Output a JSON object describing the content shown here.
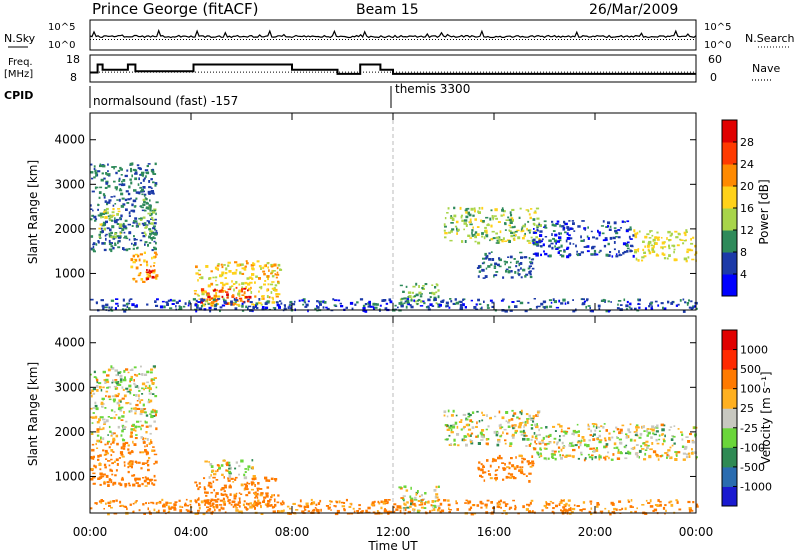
{
  "header": {
    "station": "Prince George (fitACF)",
    "beam": "Beam 15",
    "date": "26/Mar/2009"
  },
  "status_panels": {
    "nsky_label": "N.Sky",
    "nsearch_label": "N.Search",
    "nsky_ticks": [
      "10^5",
      "10^0"
    ],
    "nsearch_ticks": [
      "10^5",
      "10^0"
    ],
    "freq_label_line1": "Freq.",
    "freq_label_line2": "[MHz]",
    "freq_ticks": [
      "18",
      "8"
    ],
    "nave_label": "Nave",
    "nave_ticks": [
      "60",
      "0"
    ],
    "cpid_label": "CPID",
    "cpid_segments": [
      "normalsound (fast) -157",
      "themis 3300"
    ]
  },
  "axes": {
    "ylabel": "Slant Range [km]",
    "xlabel": "Time UT",
    "x_ticks": [
      "00:00",
      "04:00",
      "08:00",
      "12:00",
      "16:00",
      "20:00",
      "00:00"
    ],
    "y_ticks": [
      "1000",
      "2000",
      "3000",
      "4000"
    ]
  },
  "colorbars": {
    "power": {
      "label": "Power [dB]",
      "ticks": [
        "4",
        "8",
        "12",
        "16",
        "20",
        "24",
        "28"
      ],
      "colors": [
        "#0000ff",
        "#1c3aa8",
        "#2e8a5a",
        "#a8d44a",
        "#ffd21a",
        "#ff8a00",
        "#ff3a00",
        "#e00000"
      ]
    },
    "velocity": {
      "label": "Velocity [m s⁻¹]",
      "ticks": [
        "1000",
        "500",
        "100",
        "25",
        "-25",
        "-100",
        "-500",
        "-1000"
      ],
      "colors": [
        "#1a1ad0",
        "#2a6cb0",
        "#2f8a54",
        "#6ad63a",
        "#c8c8c0",
        "#ffb020",
        "#ff7a00",
        "#ff2a00",
        "#e00000"
      ]
    }
  },
  "chart_data": [
    {
      "type": "heatmap",
      "title": "Power",
      "x_range_hours": [
        0,
        24
      ],
      "y_range_km": [
        180,
        4600
      ],
      "z_label": "Power [dB]",
      "z_range": [
        0,
        30
      ],
      "regions": [
        {
          "t0": 0.0,
          "t1": 2.6,
          "r0": 1500,
          "r1": 3500,
          "power": 8
        },
        {
          "t0": 0.3,
          "t1": 1.2,
          "r0": 1800,
          "r1": 2500,
          "power": 14
        },
        {
          "t0": 1.9,
          "t1": 2.6,
          "r0": 1800,
          "r1": 2700,
          "power": 12
        },
        {
          "t0": 1.6,
          "t1": 2.6,
          "r0": 800,
          "r1": 1500,
          "power": 20
        },
        {
          "t0": 2.2,
          "t1": 2.5,
          "r0": 900,
          "r1": 1100,
          "power": 28
        },
        {
          "t0": 4.1,
          "t1": 7.5,
          "r0": 300,
          "r1": 1300,
          "power": 18
        },
        {
          "t0": 4.3,
          "t1": 6.3,
          "r0": 350,
          "r1": 700,
          "power": 26
        },
        {
          "t0": 12.2,
          "t1": 13.8,
          "r0": 250,
          "r1": 800,
          "power": 12
        },
        {
          "t0": 14.0,
          "t1": 17.8,
          "r0": 1700,
          "r1": 2500,
          "power": 14
        },
        {
          "t0": 15.3,
          "t1": 17.5,
          "r0": 900,
          "r1": 1500,
          "power": 8
        },
        {
          "t0": 17.5,
          "t1": 21.5,
          "r0": 1400,
          "r1": 2200,
          "power": 6
        },
        {
          "t0": 21.5,
          "t1": 24.0,
          "r0": 1300,
          "r1": 2000,
          "power": 16
        },
        {
          "t0": 0.0,
          "t1": 24.0,
          "r0": 180,
          "r1": 450,
          "power": 6
        }
      ]
    },
    {
      "type": "heatmap",
      "title": "Velocity",
      "x_range_hours": [
        0,
        24
      ],
      "y_range_km": [
        180,
        4600
      ],
      "z_label": "Velocity [m s-1]",
      "z_range": [
        -1000,
        1000
      ],
      "regions": [
        {
          "t0": 0.0,
          "t1": 2.6,
          "r0": 1800,
          "r1": 3500,
          "velocity": 0
        },
        {
          "t0": 0.0,
          "t1": 2.6,
          "r0": 800,
          "r1": 1800,
          "velocity": -200
        },
        {
          "t0": 4.1,
          "t1": 7.5,
          "r0": 300,
          "r1": 1000,
          "velocity": -200
        },
        {
          "t0": 4.5,
          "t1": 6.5,
          "r0": 1000,
          "r1": 1400,
          "velocity": 0
        },
        {
          "t0": 12.2,
          "t1": 13.8,
          "r0": 250,
          "r1": 800,
          "velocity": 0
        },
        {
          "t0": 14.0,
          "t1": 17.8,
          "r0": 1700,
          "r1": 2500,
          "velocity": 0
        },
        {
          "t0": 15.3,
          "t1": 17.5,
          "r0": 900,
          "r1": 1500,
          "velocity": -200
        },
        {
          "t0": 17.5,
          "t1": 24.0,
          "r0": 1400,
          "r1": 2200,
          "velocity": 0
        },
        {
          "t0": 0.0,
          "t1": 24.0,
          "r0": 180,
          "r1": 500,
          "velocity": -150
        }
      ]
    }
  ],
  "time_series": {
    "nsky_level": 0.45,
    "nsearch_level": 0.35,
    "freq_segments": [
      {
        "t0": 0.0,
        "t1": 0.3,
        "mhz": 11.5
      },
      {
        "t0": 0.3,
        "t1": 0.5,
        "mhz": 14.5
      },
      {
        "t0": 0.5,
        "t1": 1.5,
        "mhz": 12.5
      },
      {
        "t0": 1.5,
        "t1": 1.8,
        "mhz": 14.5
      },
      {
        "t0": 1.8,
        "t1": 4.1,
        "mhz": 12.0
      },
      {
        "t0": 4.1,
        "t1": 8.0,
        "mhz": 14.5
      },
      {
        "t0": 8.0,
        "t1": 9.8,
        "mhz": 12.5
      },
      {
        "t0": 9.8,
        "t1": 10.7,
        "mhz": 11.0
      },
      {
        "t0": 10.7,
        "t1": 11.5,
        "mhz": 14.5
      },
      {
        "t0": 11.5,
        "t1": 12.0,
        "mhz": 12.5
      },
      {
        "t0": 12.0,
        "t1": 24.0,
        "mhz": 11.0
      }
    ],
    "nave_value": 22
  }
}
